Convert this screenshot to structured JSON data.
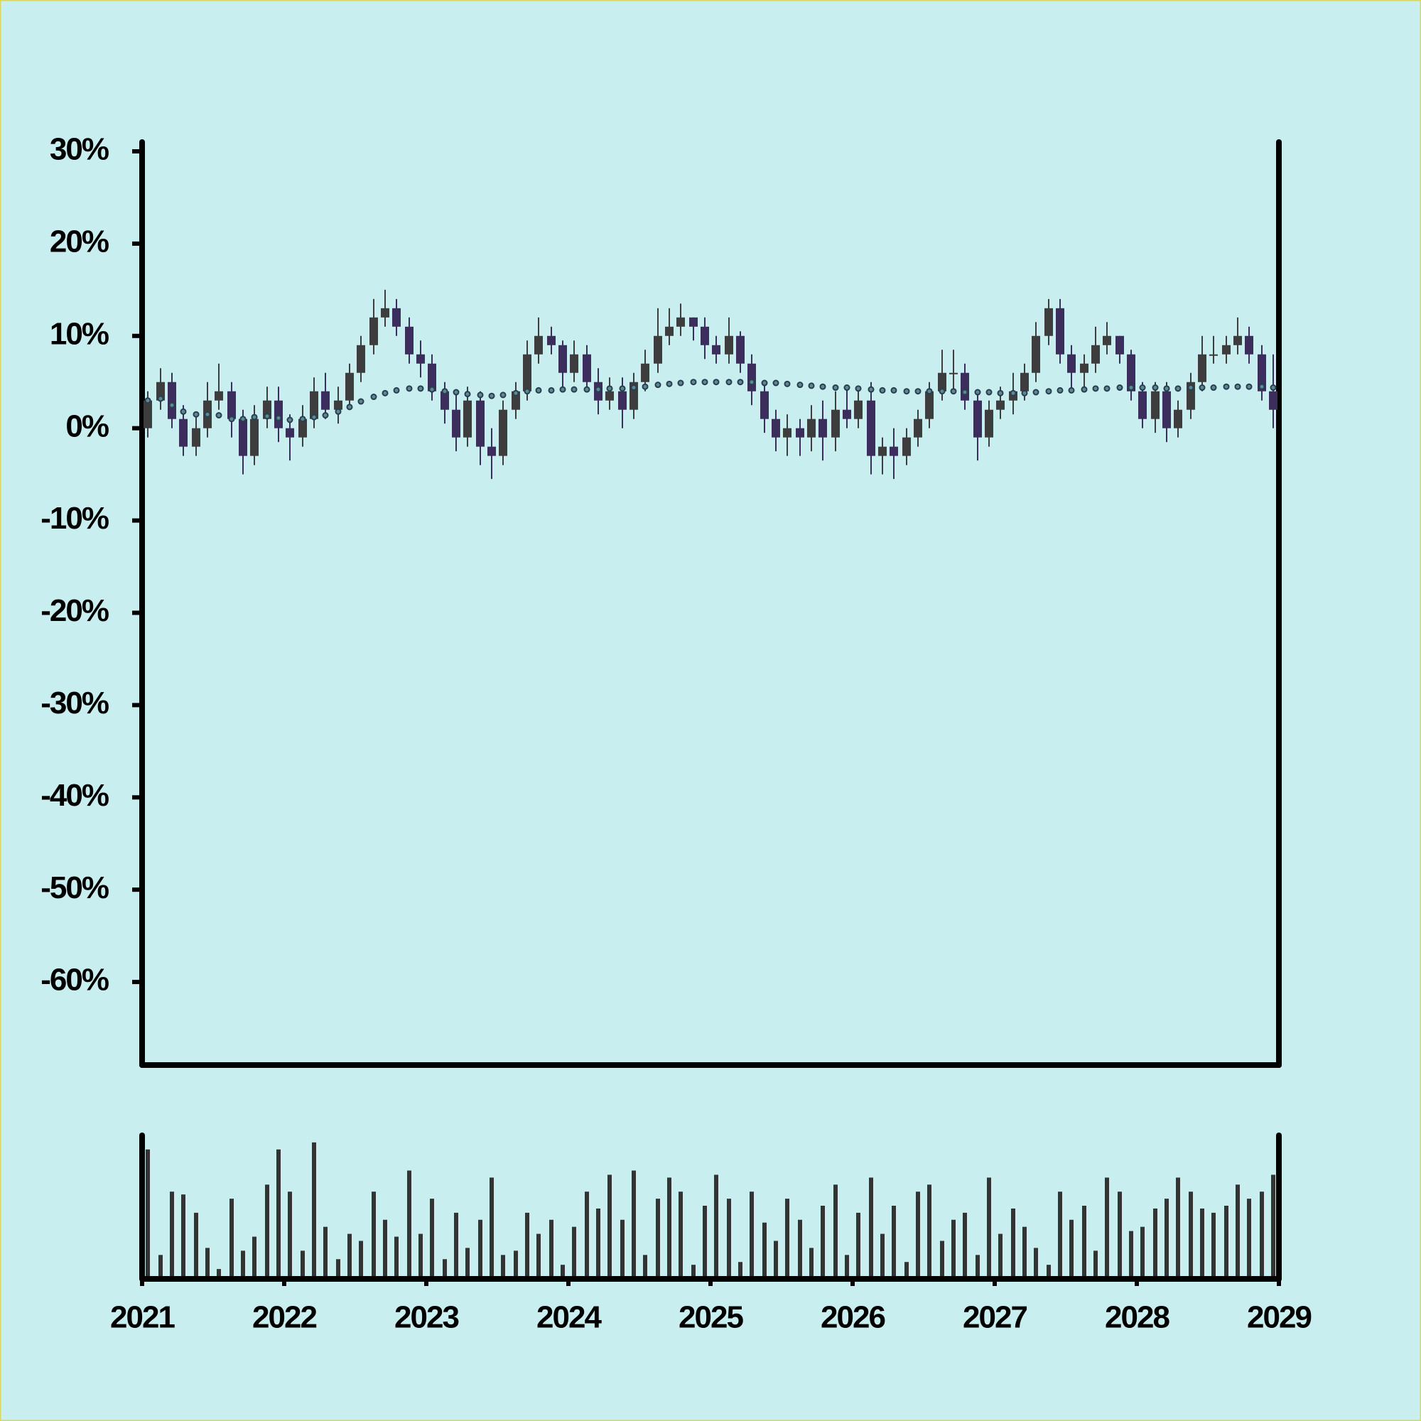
{
  "chart_data": {
    "type": "candlestick",
    "x": [
      2021.04,
      2021.13,
      2021.21,
      2021.29,
      2021.38,
      2021.46,
      2021.54,
      2021.63,
      2021.71,
      2021.79,
      2021.88,
      2021.96,
      2022.04,
      2022.13,
      2022.21,
      2022.29,
      2022.38,
      2022.46,
      2022.54,
      2022.63,
      2022.71,
      2022.79,
      2022.88,
      2022.96,
      2023.04,
      2023.13,
      2023.21,
      2023.29,
      2023.38,
      2023.46,
      2023.54,
      2023.63,
      2023.71,
      2023.79,
      2023.88,
      2023.96,
      2024.04,
      2024.13,
      2024.21,
      2024.29,
      2024.38,
      2024.46,
      2024.54,
      2024.63,
      2024.71,
      2024.79,
      2024.88,
      2024.96,
      2025.04,
      2025.13,
      2025.21,
      2025.29,
      2025.38,
      2025.46,
      2025.54,
      2025.63,
      2025.71,
      2025.79,
      2025.88,
      2025.96,
      2026.04,
      2026.13,
      2026.21,
      2026.29,
      2026.38,
      2026.46,
      2026.54,
      2026.63,
      2026.71,
      2026.79,
      2026.88,
      2026.96,
      2027.04,
      2027.13,
      2027.21,
      2027.29,
      2027.38,
      2027.46,
      2027.54,
      2027.63,
      2027.71,
      2027.79,
      2027.88,
      2027.96,
      2028.04,
      2028.13,
      2028.21,
      2028.29,
      2028.38,
      2028.46,
      2028.54,
      2028.63,
      2028.71,
      2028.79,
      2028.88,
      2028.96
    ],
    "open": [
      0,
      3,
      5,
      1,
      -2,
      0,
      3,
      4,
      1,
      -3,
      1,
      3,
      0,
      -1,
      1,
      4,
      2,
      3,
      6,
      9,
      12,
      13,
      11,
      8,
      7,
      4,
      2,
      -1,
      3,
      -2,
      -3,
      2,
      4,
      8,
      10,
      9,
      6,
      8,
      5,
      3,
      4,
      2,
      5,
      7,
      10,
      11,
      12,
      11,
      9,
      8,
      10,
      7,
      4,
      1,
      -1,
      0,
      -1,
      1,
      -1,
      2,
      1,
      3,
      -3,
      -2,
      -3,
      -1,
      1,
      4,
      6,
      6,
      3,
      -1,
      2,
      3,
      4,
      6,
      10,
      13,
      8,
      6,
      7,
      9,
      10,
      8,
      4,
      1,
      4,
      0,
      2,
      5,
      8,
      8,
      9,
      10,
      8,
      4
    ],
    "high": [
      4,
      6.5,
      6,
      2.5,
      1.5,
      5,
      7,
      5,
      2,
      2.5,
      4.5,
      4.5,
      1.5,
      2.5,
      5.5,
      6,
      4.5,
      7,
      10,
      14,
      15,
      14,
      12,
      9.5,
      8,
      5,
      4,
      4.5,
      4,
      0,
      3,
      5,
      9.5,
      12,
      11,
      9.5,
      9.5,
      9,
      6.5,
      5.5,
      5.5,
      6,
      8.5,
      13,
      13,
      13.5,
      12,
      12,
      10,
      12,
      10.5,
      8,
      5,
      2,
      1.5,
      1,
      2.5,
      3,
      4,
      4.5,
      4.5,
      5,
      -1,
      0,
      0,
      2,
      5,
      8.5,
      8.5,
      7,
      4,
      3,
      4.5,
      6,
      7,
      11.5,
      14,
      14,
      9,
      8,
      11,
      11.5,
      10,
      8.5,
      5,
      5,
      5,
      3,
      6,
      10,
      10,
      10,
      12,
      11,
      9,
      8
    ],
    "low": [
      -1,
      2,
      0,
      -3,
      -3,
      -1,
      2,
      -1,
      -5,
      -4,
      0,
      -1.5,
      -3.5,
      -2,
      0,
      1,
      0.5,
      2,
      5,
      8,
      11,
      10,
      7,
      5.5,
      3,
      0.5,
      -2.5,
      -2,
      -4,
      -5.5,
      -4,
      1,
      3,
      7,
      8,
      4.5,
      5,
      4,
      1.5,
      2,
      0,
      1,
      4,
      6,
      9,
      10,
      9.5,
      7.5,
      7,
      7,
      6,
      2.5,
      -0.5,
      -2.5,
      -3,
      -3,
      -2.5,
      -3.5,
      -2.5,
      0,
      0,
      -5,
      -5,
      -5.5,
      -4,
      -2,
      0,
      3,
      4,
      2,
      -3.5,
      -2,
      1,
      1.5,
      3,
      5,
      9,
      7,
      4,
      4,
      6,
      8,
      7,
      3,
      0,
      -0.5,
      -1.5,
      -1,
      1,
      4,
      7,
      7,
      8,
      7,
      3,
      0
    ],
    "close": [
      3,
      5,
      1,
      -2,
      0,
      3,
      4,
      1,
      -3,
      1,
      3,
      0,
      -1,
      1,
      4,
      2,
      3,
      6,
      9,
      12,
      13,
      11,
      8,
      7,
      4,
      2,
      -1,
      3,
      -2,
      -3,
      2,
      4,
      8,
      10,
      9,
      6,
      8,
      5,
      3,
      4,
      2,
      5,
      7,
      10,
      11,
      12,
      11,
      9,
      8,
      10,
      7,
      4,
      1,
      -1,
      0,
      -1,
      1,
      -1,
      2,
      1,
      3,
      -3,
      -2,
      -3,
      -1,
      1,
      4,
      6,
      6,
      3,
      -1,
      2,
      3,
      4,
      6,
      10,
      13,
      8,
      6,
      7,
      9,
      10,
      8,
      4,
      1,
      4,
      0,
      2,
      5,
      8,
      8,
      9,
      10,
      8,
      4,
      2
    ],
    "up_color": "#3d3d3d",
    "down_color": "#3b2d5c",
    "moving_average": {
      "color": "#2a3d4d",
      "values": [
        3.0,
        3.2,
        2.5,
        1.8,
        1.5,
        1.5,
        1.4,
        1.0,
        1.0,
        1.2,
        1.3,
        1.1,
        0.9,
        1.0,
        1.2,
        1.4,
        1.8,
        2.3,
        2.9,
        3.4,
        3.8,
        4.1,
        4.3,
        4.3,
        4.2,
        4.0,
        3.9,
        3.7,
        3.6,
        3.5,
        3.6,
        3.8,
        4.0,
        4.1,
        4.1,
        4.2,
        4.2,
        4.2,
        4.2,
        4.3,
        4.3,
        4.4,
        4.5,
        4.7,
        4.8,
        4.9,
        5.0,
        5.0,
        5.0,
        5.0,
        5.0,
        5.0,
        4.9,
        4.9,
        4.8,
        4.7,
        4.6,
        4.5,
        4.4,
        4.4,
        4.3,
        4.2,
        4.1,
        4.1,
        4.0,
        4.0,
        4.0,
        4.0,
        4.0,
        3.9,
        3.9,
        3.9,
        3.8,
        3.8,
        3.8,
        3.9,
        4.0,
        4.1,
        4.1,
        4.2,
        4.3,
        4.3,
        4.4,
        4.4,
        4.4,
        4.4,
        4.3,
        4.3,
        4.4,
        4.4,
        4.4,
        4.5,
        4.5,
        4.5,
        4.5,
        4.4
      ]
    },
    "volume": {
      "color": "#333333",
      "ylim": [
        0,
        100
      ],
      "values": [
        90,
        15,
        60,
        58,
        45,
        20,
        5,
        55,
        18,
        28,
        65,
        90,
        60,
        18,
        95,
        35,
        12,
        30,
        25,
        60,
        40,
        28,
        75,
        30,
        55,
        12,
        45,
        20,
        40,
        70,
        15,
        18,
        45,
        30,
        40,
        8,
        35,
        60,
        48,
        72,
        40,
        75,
        15,
        55,
        70,
        60,
        8,
        50,
        72,
        55,
        10,
        60,
        38,
        25,
        55,
        40,
        20,
        50,
        65,
        15,
        45,
        70,
        30,
        50,
        10,
        60,
        65,
        25,
        40,
        45,
        15,
        70,
        30,
        48,
        35,
        20,
        8,
        60,
        40,
        50,
        18,
        70,
        60,
        32,
        35,
        48,
        55,
        70,
        60,
        48,
        45,
        50,
        65,
        55,
        60,
        72
      ]
    },
    "ylim": [
      -69,
      31
    ],
    "yticks": [
      {
        "value": 30,
        "label": "30%"
      },
      {
        "value": 20,
        "label": "20%"
      },
      {
        "value": 10,
        "label": "10%"
      },
      {
        "value": 0,
        "label": "0%"
      },
      {
        "value": -10,
        "label": "-10%"
      },
      {
        "value": -20,
        "label": "-20%"
      },
      {
        "value": -30,
        "label": "-30%"
      },
      {
        "value": -40,
        "label": "-40%"
      },
      {
        "value": -50,
        "label": "-50%"
      },
      {
        "value": -60,
        "label": "-60%"
      }
    ],
    "xlim": [
      2021,
      2029
    ],
    "xticks": [
      2021,
      2022,
      2023,
      2024,
      2025,
      2026,
      2027,
      2028,
      2029
    ]
  }
}
